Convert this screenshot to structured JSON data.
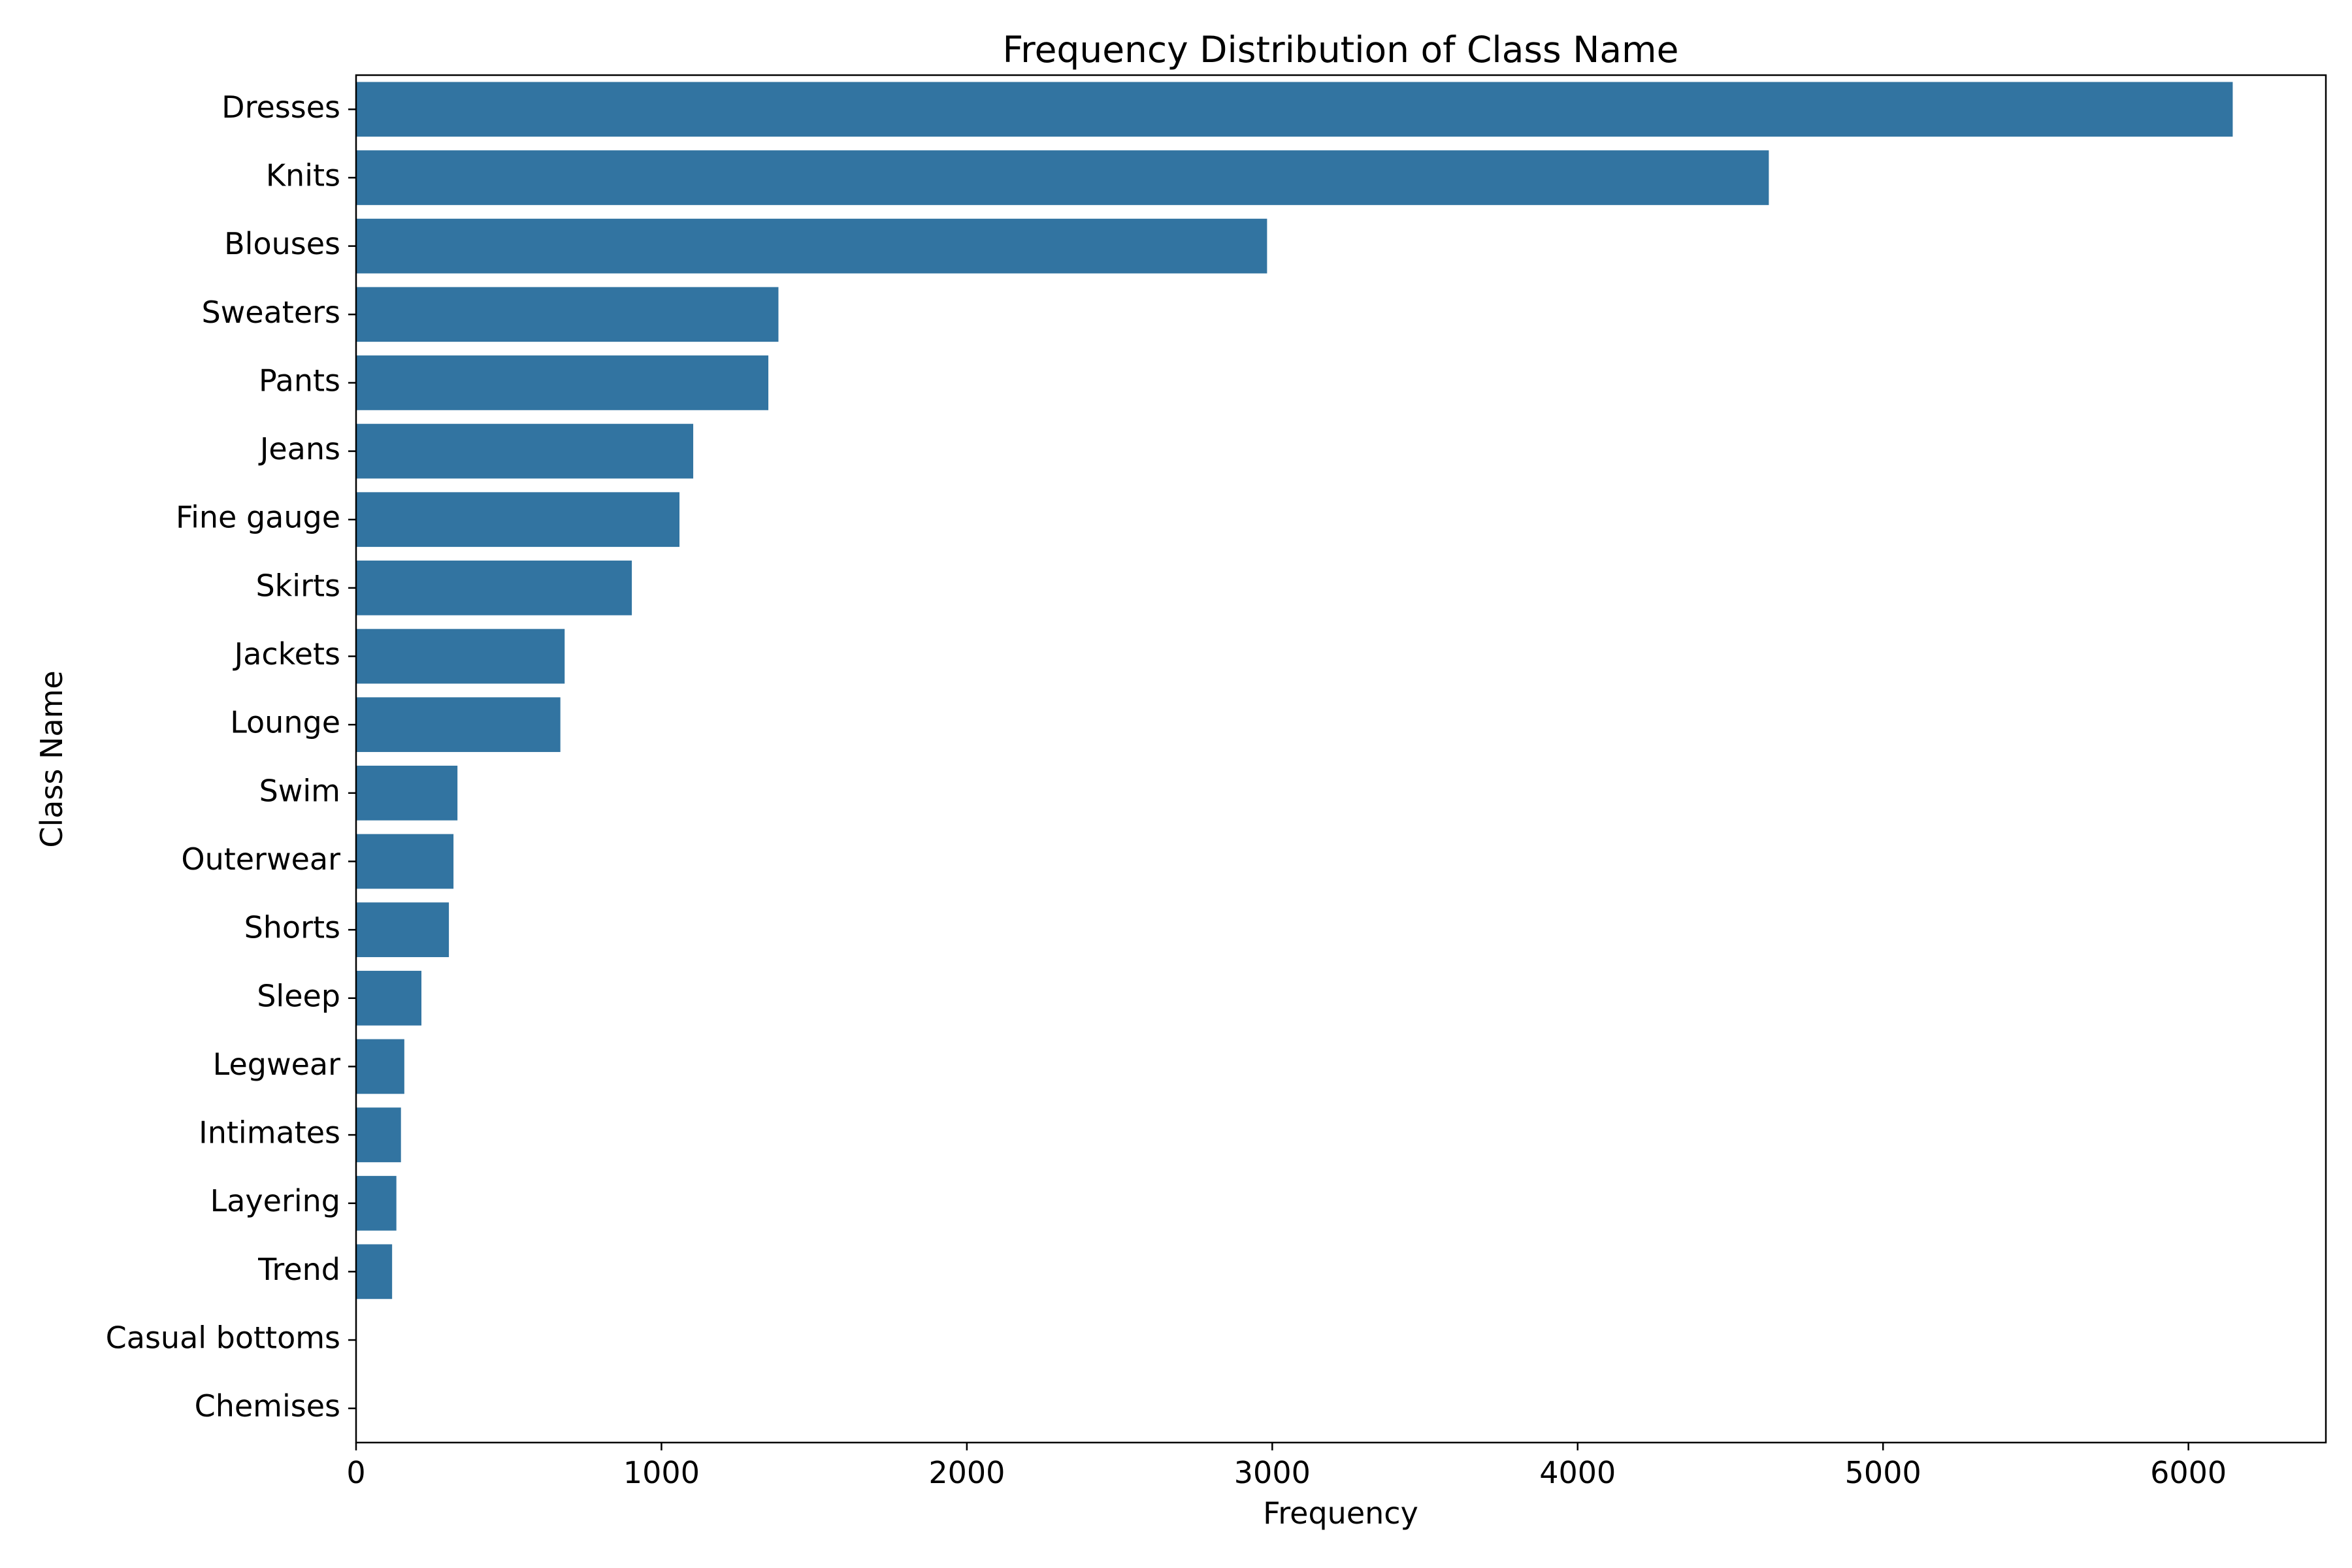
{
  "chart_data": {
    "type": "bar",
    "orientation": "horizontal",
    "title": "Frequency Distribution of Class Name",
    "xlabel": "Frequency",
    "ylabel": "Class Name",
    "categories": [
      "Dresses",
      "Knits",
      "Blouses",
      "Sweaters",
      "Pants",
      "Jeans",
      "Fine gauge",
      "Skirts",
      "Jackets",
      "Lounge",
      "Swim",
      "Outerwear",
      "Shorts",
      "Sleep",
      "Legwear",
      "Intimates",
      "Layering",
      "Trend",
      "Casual bottoms",
      "Chemises"
    ],
    "values": [
      6145,
      4626,
      2983,
      1383,
      1350,
      1104,
      1059,
      903,
      683,
      669,
      332,
      319,
      304,
      214,
      158,
      147,
      132,
      118,
      2,
      1
    ],
    "xlim": [
      0,
      6450
    ],
    "xticks": [
      0,
      1000,
      2000,
      3000,
      4000,
      5000,
      6000
    ],
    "grid": false,
    "bar_color": "#3274a1"
  }
}
